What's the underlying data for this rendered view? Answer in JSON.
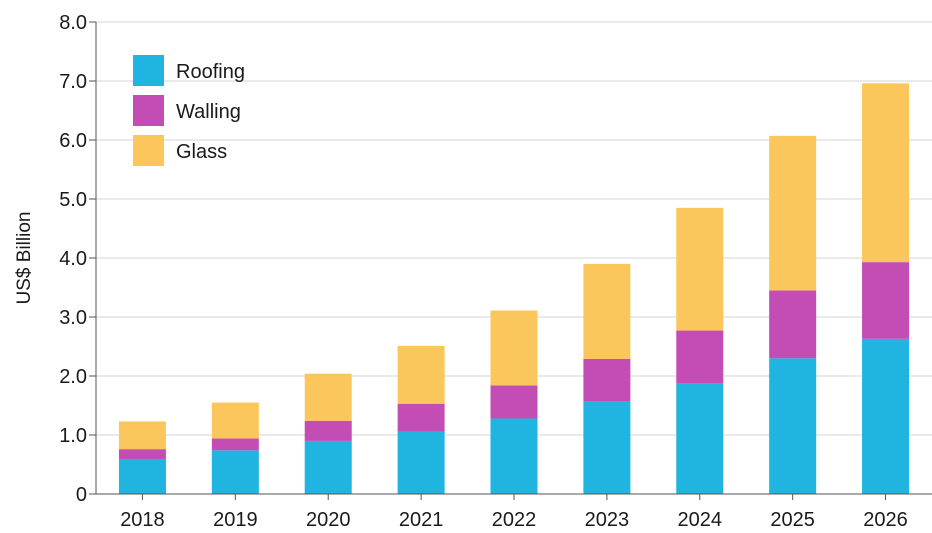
{
  "chart_data": {
    "type": "bar",
    "stacked": true,
    "title": "",
    "xlabel": "",
    "ylabel": "US$ Billion",
    "ylim": [
      0,
      8
    ],
    "yticks": [
      "0",
      "1.0",
      "2.0",
      "3.0",
      "4.0",
      "5.0",
      "6.0",
      "7.0",
      "8.0"
    ],
    "grid": true,
    "legend_position": "top-left",
    "categories": [
      "2018",
      "2019",
      "2020",
      "2021",
      "2022",
      "2023",
      "2024",
      "2025",
      "2026"
    ],
    "series": [
      {
        "name": "Roofing",
        "color": "#1fb5e0",
        "values": [
          0.58,
          0.74,
          0.9,
          1.06,
          1.28,
          1.57,
          1.88,
          2.3,
          2.63
        ]
      },
      {
        "name": "Walling",
        "color": "#c34cb5",
        "values": [
          0.18,
          0.2,
          0.34,
          0.47,
          0.56,
          0.72,
          0.89,
          1.15,
          1.3
        ]
      },
      {
        "name": "Glass",
        "color": "#fbc75c",
        "values": [
          0.47,
          0.61,
          0.8,
          0.98,
          1.27,
          1.61,
          2.08,
          2.62,
          3.03
        ]
      }
    ]
  }
}
